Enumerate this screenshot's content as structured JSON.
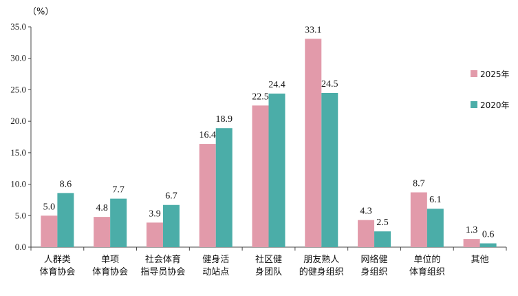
{
  "chart_data": {
    "type": "bar",
    "unit_label": "（%）",
    "categories": [
      [
        "人群类",
        "体育协会"
      ],
      [
        "单项",
        "体育协会"
      ],
      [
        "社会体育",
        "指导员协会"
      ],
      [
        "健身活",
        "动站点"
      ],
      [
        "社区健",
        "身团队"
      ],
      [
        "朋友熟人",
        "的健身组织"
      ],
      [
        "网络健",
        "身组织"
      ],
      [
        "单位的",
        "体育组织"
      ],
      [
        "其他"
      ]
    ],
    "series": [
      {
        "name": "2025年",
        "color": "#E29AAA",
        "values": [
          5.0,
          4.8,
          3.9,
          16.4,
          22.5,
          33.1,
          4.3,
          8.7,
          1.3
        ],
        "labels": [
          "5.0",
          "4.8",
          "3.9",
          "16.4",
          "22.5",
          "33.1",
          "4.3",
          "8.7",
          "1.3"
        ]
      },
      {
        "name": "2020年",
        "color": "#4BADA8",
        "values": [
          8.6,
          7.7,
          6.7,
          18.9,
          24.4,
          24.5,
          2.5,
          6.1,
          0.6
        ],
        "labels": [
          "8.6",
          "7.7",
          "6.7",
          "18.9",
          "24.4",
          "24.5",
          "2.5",
          "6.1",
          "0.6"
        ]
      }
    ],
    "ylim": [
      0,
      35
    ],
    "yticks": [
      "0.0",
      "5.0",
      "10.0",
      "15.0",
      "20.0",
      "25.0",
      "30.0",
      "35.0"
    ],
    "grid": false,
    "legend": "right"
  }
}
